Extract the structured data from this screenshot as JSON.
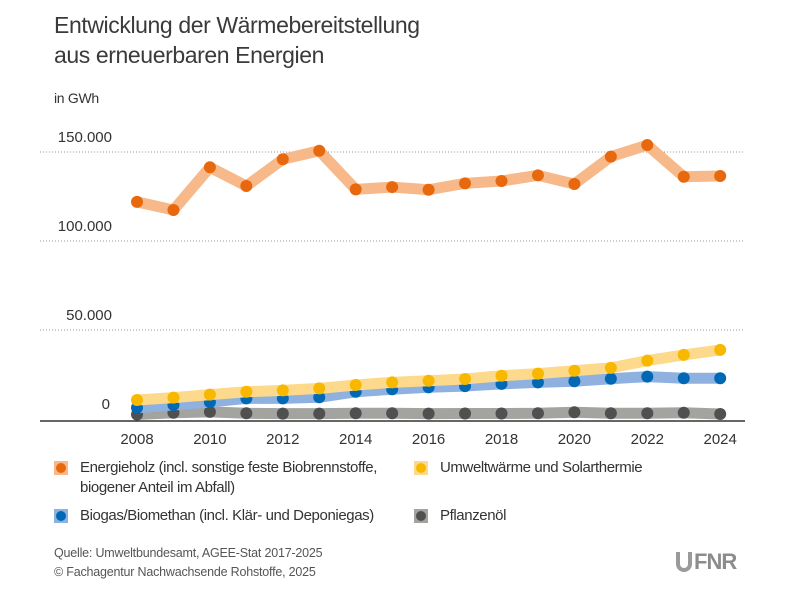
{
  "chart_data": {
    "type": "line",
    "title": "Entwicklung der Wärmebereitstellung aus erneuerbaren Energien",
    "title_lines": [
      "Entwicklung der Wärmebereitstellung",
      "aus erneuerbaren Energien"
    ],
    "ylabel": "in GWh",
    "xlabel": "",
    "ylim": [
      0,
      155000
    ],
    "y_ticks": [
      0,
      50000,
      100000,
      150000
    ],
    "y_tick_labels": [
      "0",
      "50.000",
      "100.000",
      "150.000"
    ],
    "x": [
      2008,
      2009,
      2010,
      2011,
      2012,
      2013,
      2014,
      2015,
      2016,
      2017,
      2018,
      2019,
      2020,
      2021,
      2022,
      2023,
      2024
    ],
    "x_tick_labels": [
      "2008",
      "2010",
      "2012",
      "2014",
      "2016",
      "2018",
      "2020",
      "2022",
      "2024"
    ],
    "grid": "horizontal dotted",
    "legend_position": "bottom",
    "series": [
      {
        "name": "Energieholz (incl. sonstige feste Biobrennstoffe, biogener Anteil im Abfall)",
        "legend_lines": [
          "Energieholz (incl. sonstige feste Biobrennstoffe,",
          "biogener Anteil im Abfall)"
        ],
        "dot_color": "#e8680e",
        "line_color": "#f7b98a",
        "values": [
          122000,
          117400,
          141400,
          130900,
          145900,
          150700,
          129000,
          130300,
          128800,
          132400,
          133700,
          136900,
          132000,
          147400,
          153900,
          136100,
          136500
        ]
      },
      {
        "name": "Umweltwärme und Solarthermie",
        "legend_lines": [
          "Umweltwärme und Solarthermie"
        ],
        "dot_color": "#f9b800",
        "line_color": "#fdd98c",
        "values": [
          10700,
          12000,
          13700,
          15300,
          16100,
          17200,
          19100,
          20600,
          21500,
          22500,
          24300,
          25500,
          27100,
          28700,
          32800,
          36000,
          38800
        ]
      },
      {
        "name": "Biogas/Biomethan (incl. Klär- und Deponiegas)",
        "legend_lines": [
          "Biogas/Biomethan (incl. Klär- und Deponiegas)"
        ],
        "dot_color": "#0068b4",
        "line_color": "#8fb1df",
        "values": [
          6300,
          7900,
          9500,
          11600,
          11600,
          12200,
          15300,
          16700,
          17800,
          18500,
          19700,
          20600,
          21200,
          22600,
          23800,
          22900,
          22900
        ]
      },
      {
        "name": "Pflanzenöl",
        "legend_lines": [
          "Pflanzenöl"
        ],
        "dot_color": "#505050",
        "line_color": "#a3a39f",
        "values": [
          2500,
          3500,
          4000,
          3200,
          3000,
          3000,
          3200,
          3200,
          3000,
          3100,
          3100,
          3200,
          3800,
          3200,
          3200,
          3500,
          2800
        ]
      }
    ]
  },
  "footer": {
    "source_line1": "Quelle: Umweltbundesamt, AGEE-Stat 2017-2025",
    "source_line2": "© Fachagentur Nachwachsende Rohstoffe, 2025",
    "logo_text": "FNR"
  }
}
